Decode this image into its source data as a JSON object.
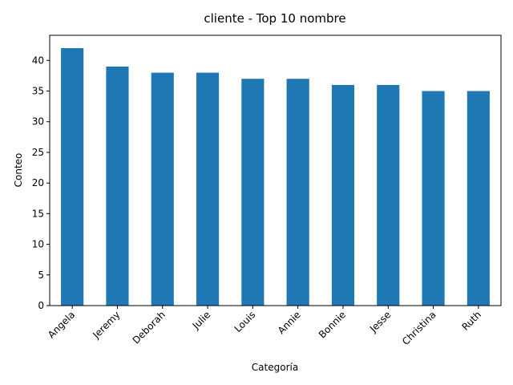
{
  "chart_data": {
    "type": "bar",
    "title": "cliente - Top 10 nombre",
    "xlabel": "Categoría",
    "ylabel": "Conteo",
    "categories": [
      "Angela",
      "Jeremy",
      "Deborah",
      "Julie",
      "Louis",
      "Annie",
      "Bonnie",
      "Jesse",
      "Christina",
      "Ruth"
    ],
    "values": [
      42,
      39,
      38,
      38,
      37,
      37,
      36,
      36,
      35,
      35
    ],
    "ylim": [
      0,
      44.1
    ],
    "yticks": [
      0,
      5,
      10,
      15,
      20,
      25,
      30,
      35,
      40
    ],
    "bar_color": "#1f77b4",
    "grid": false,
    "legend": "none"
  }
}
